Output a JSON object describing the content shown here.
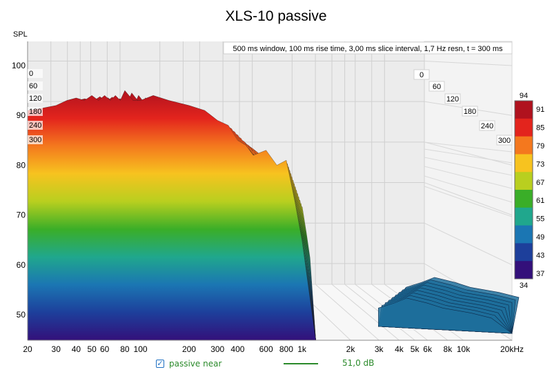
{
  "chart_data": {
    "type": "area",
    "title": "XLS-10 passive",
    "subtitle": "500 ms window, 100 ms rise time, 3,00 ms slice interval, 1,7 Hz resn, t = 300 ms",
    "ylabel": "SPL",
    "xlabel": "",
    "x_scale": "log",
    "xlim": [
      20,
      20000
    ],
    "ylim": [
      45,
      104
    ],
    "x_ticks": [
      "20",
      "30",
      "40",
      "50",
      "60",
      "80",
      "100",
      "200",
      "300",
      "400",
      "600",
      "800",
      "1k",
      "2k",
      "3k",
      "4k",
      "5k",
      "6k",
      "8k",
      "10k",
      "20kHz"
    ],
    "x_tick_values": [
      20,
      30,
      40,
      50,
      60,
      80,
      100,
      200,
      300,
      400,
      600,
      800,
      1000,
      2000,
      3000,
      4000,
      5000,
      6000,
      8000,
      10000,
      20000
    ],
    "y_ticks": [
      50,
      60,
      70,
      80,
      90,
      100
    ],
    "time_ticks": [
      "0",
      "60",
      "120",
      "180",
      "240",
      "300"
    ],
    "time_ticks_left": [
      "0",
      "60",
      "120",
      "180",
      "240",
      "300"
    ],
    "colorbar": {
      "max_label": "94",
      "min_label": "34",
      "ticks": [
        "91",
        "85",
        "79",
        "73",
        "67",
        "61",
        "55",
        "49",
        "43",
        "37"
      ],
      "colors": [
        "#b0121e",
        "#e3241d",
        "#f4781e",
        "#f7c31f",
        "#b9cf1f",
        "#3aae28",
        "#20a78d",
        "#1b76b3",
        "#1d3f9b",
        "#33107a"
      ]
    },
    "grid": true,
    "series": [
      {
        "name": "passive near",
        "color": "#2a8a2a",
        "x": [
          20,
          25,
          30,
          35,
          40,
          45,
          50,
          55,
          60,
          65,
          70,
          75,
          80,
          90,
          100,
          120,
          150,
          200,
          250,
          300,
          350,
          400,
          450,
          500,
          600,
          700,
          800,
          900,
          1000
        ],
        "y": [
          91,
          91.5,
          92,
          93,
          93.5,
          93,
          94,
          93,
          94,
          93,
          94,
          93,
          95,
          93,
          93,
          94,
          93,
          92,
          91,
          89,
          88,
          85,
          84,
          82,
          83,
          80,
          81,
          73,
          65
        ]
      },
      {
        "name": "",
        "x": [
          4000,
          5000,
          6000,
          8000,
          10000,
          15000,
          20000
        ],
        "y": [
          53,
          54,
          55,
          54,
          53,
          52,
          51
        ]
      }
    ]
  },
  "legend": {
    "checked": "✓",
    "label": "passive near",
    "value": "51,0 dB"
  }
}
